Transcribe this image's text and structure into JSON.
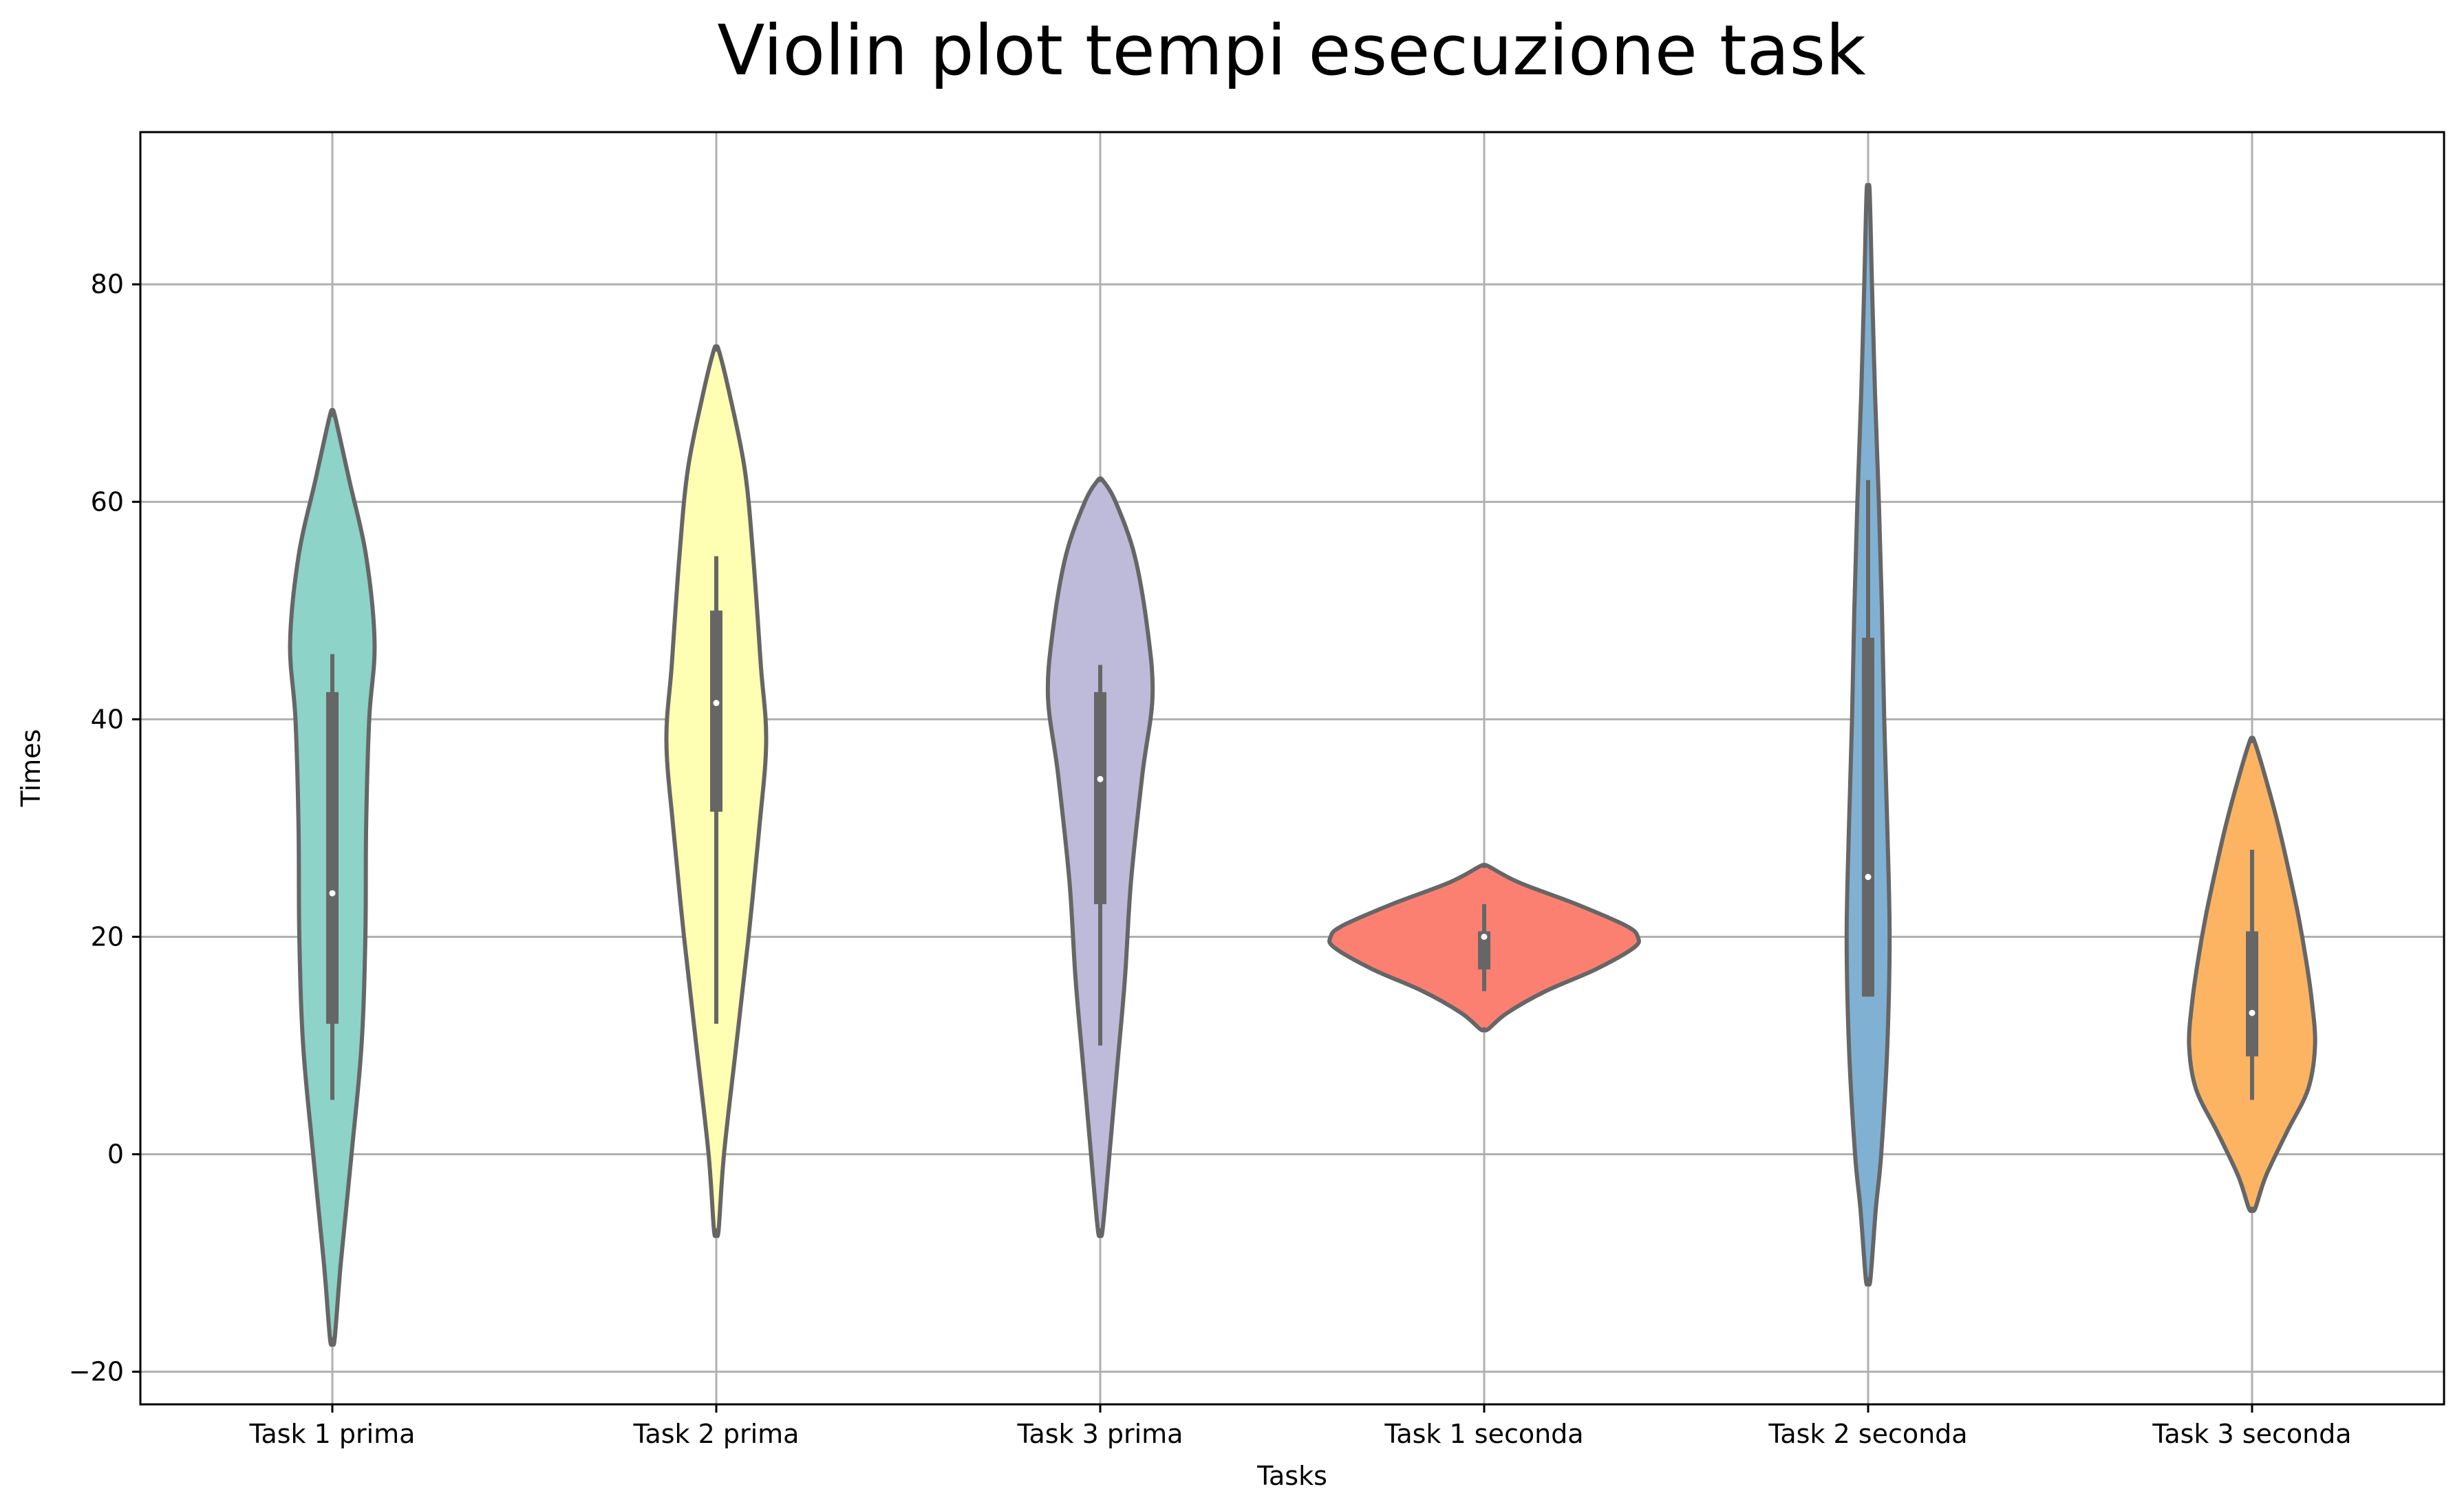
{
  "chart_data": {
    "type": "violin",
    "title": "Violin plot tempi esecuzione task",
    "xlabel": "Tasks",
    "ylabel": "Times",
    "ylim": [
      -23,
      94
    ],
    "yticks": [
      -20,
      0,
      20,
      40,
      60,
      80
    ],
    "ytick_labels": [
      "−20",
      "0",
      "20",
      "40",
      "60",
      "80"
    ],
    "grid": true,
    "categories": [
      "Task 1 prima",
      "Task 2 prima",
      "Task 3 prima",
      "Task 1 seconda",
      "Task 2 seconda",
      "Task 3 seconda"
    ],
    "series": [
      {
        "color": "#8dd3c7",
        "min": -17,
        "max": 68,
        "whisker_low": 5,
        "whisker_high": 46,
        "q1": 12,
        "median": 24,
        "q3": 42.5,
        "density": [
          [
            -17,
            0.03
          ],
          [
            -10,
            0.11
          ],
          [
            0,
            0.25
          ],
          [
            10,
            0.38
          ],
          [
            20,
            0.43
          ],
          [
            30,
            0.44
          ],
          [
            40,
            0.48
          ],
          [
            47,
            0.55
          ],
          [
            55,
            0.44
          ],
          [
            62,
            0.22
          ],
          [
            68,
            0.03
          ]
        ]
      },
      {
        "color": "#ffffb3",
        "min": -7,
        "max": 74,
        "whisker_low": 12,
        "whisker_high": 55,
        "q1": 31.5,
        "median": 41.5,
        "q3": 50,
        "density": [
          [
            -7,
            0.03
          ],
          [
            0,
            0.1
          ],
          [
            10,
            0.26
          ],
          [
            20,
            0.42
          ],
          [
            30,
            0.56
          ],
          [
            38,
            0.65
          ],
          [
            45,
            0.58
          ],
          [
            55,
            0.48
          ],
          [
            63,
            0.37
          ],
          [
            70,
            0.17
          ],
          [
            74,
            0.03
          ]
        ]
      },
      {
        "color": "#bebada",
        "min": -7,
        "max": 62,
        "whisker_low": 10,
        "whisker_high": 45,
        "q1": 23,
        "median": 34.5,
        "q3": 42.5,
        "density": [
          [
            -7,
            0.03
          ],
          [
            0,
            0.12
          ],
          [
            8,
            0.22
          ],
          [
            16,
            0.32
          ],
          [
            25,
            0.4
          ],
          [
            35,
            0.55
          ],
          [
            42,
            0.68
          ],
          [
            48,
            0.62
          ],
          [
            55,
            0.45
          ],
          [
            60,
            0.2
          ],
          [
            62,
            0.03
          ]
        ]
      },
      {
        "color": "#fb8072",
        "min": 11.5,
        "max": 26.5,
        "whisker_low": 15,
        "whisker_high": 23,
        "q1": 17,
        "median": 20,
        "q3": 20.5,
        "density": [
          [
            11.5,
            0.05
          ],
          [
            13,
            0.3
          ],
          [
            15,
            0.8
          ],
          [
            17,
            1.45
          ],
          [
            19,
            1.95
          ],
          [
            20,
            2.0
          ],
          [
            21,
            1.85
          ],
          [
            23,
            1.2
          ],
          [
            25,
            0.45
          ],
          [
            26.5,
            0.05
          ]
        ]
      },
      {
        "color": "#80b1d3",
        "min": -11.5,
        "max": 88.5,
        "whisker_low": 14.5,
        "whisker_high": 62,
        "q1": 14.5,
        "median": 25.5,
        "q3": 47.5,
        "density": [
          [
            -11.5,
            0.03
          ],
          [
            -5,
            0.1
          ],
          [
            0,
            0.17
          ],
          [
            10,
            0.25
          ],
          [
            20,
            0.28
          ],
          [
            30,
            0.25
          ],
          [
            40,
            0.21
          ],
          [
            50,
            0.18
          ],
          [
            60,
            0.14
          ],
          [
            70,
            0.09
          ],
          [
            80,
            0.05
          ],
          [
            88.5,
            0.02
          ]
        ]
      },
      {
        "color": "#fdb462",
        "min": -5,
        "max": 38,
        "whisker_low": 5,
        "whisker_high": 28,
        "q1": 9,
        "median": 13,
        "q3": 20.5,
        "density": [
          [
            -5,
            0.04
          ],
          [
            -2,
            0.18
          ],
          [
            2,
            0.45
          ],
          [
            6,
            0.73
          ],
          [
            10,
            0.82
          ],
          [
            14,
            0.78
          ],
          [
            18,
            0.7
          ],
          [
            22,
            0.6
          ],
          [
            26,
            0.48
          ],
          [
            30,
            0.35
          ],
          [
            34,
            0.2
          ],
          [
            38,
            0.03
          ]
        ]
      }
    ]
  }
}
